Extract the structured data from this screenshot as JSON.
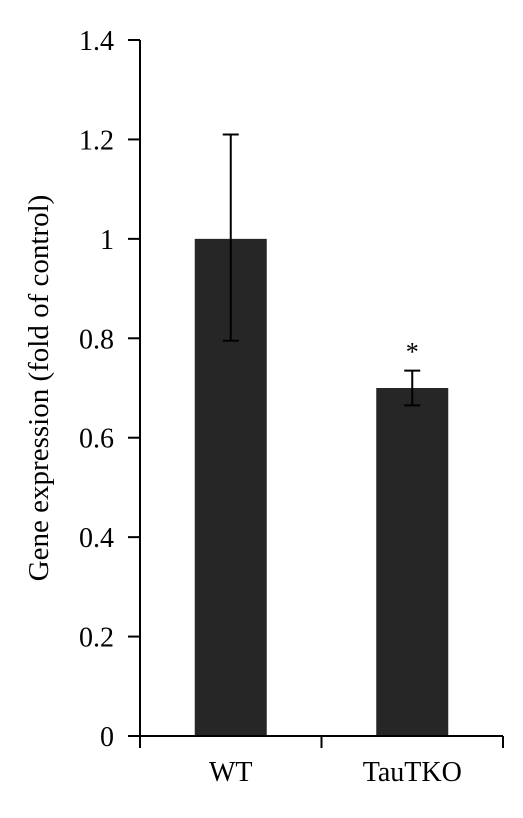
{
  "chart_data": {
    "type": "bar",
    "title": "",
    "xlabel": "",
    "ylabel": "Gene expression (fold of control)",
    "ylim": [
      0,
      1.4
    ],
    "yticks": [
      "0",
      "0.2",
      "0.4",
      "0.6",
      "0.8",
      "1",
      "1.2",
      "1.4"
    ],
    "categories": [
      "WT",
      "TauTKO"
    ],
    "values": [
      1.0,
      0.7
    ],
    "error_upper": [
      1.21,
      0.735
    ],
    "error_lower": [
      0.795,
      0.665
    ],
    "annotations": [
      "",
      "*"
    ],
    "bar_color": "#262626",
    "grid": false,
    "legend": "none"
  }
}
